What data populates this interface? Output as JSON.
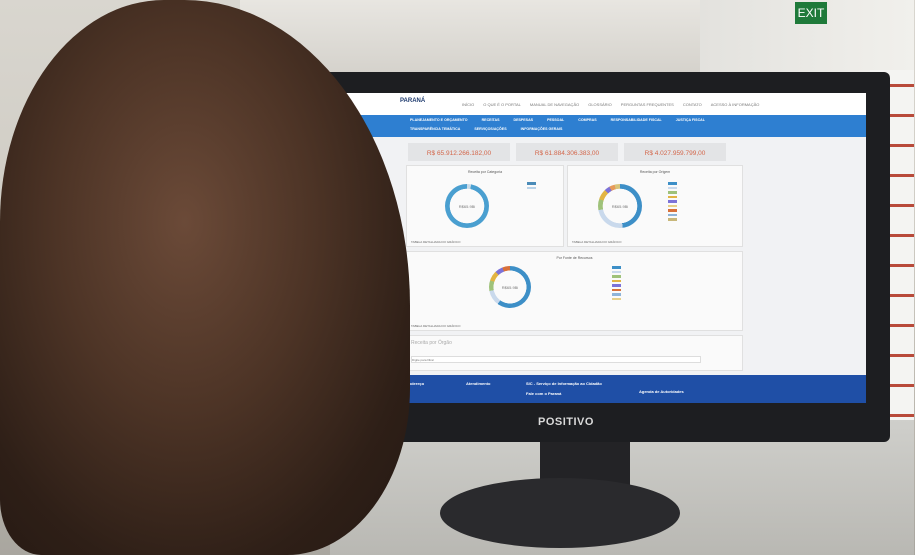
{
  "sign": {
    "exit_label": "EXIT"
  },
  "monitor": {
    "brand": "POSITIVO"
  },
  "site": {
    "logo": "PARANÁ",
    "top_nav": [
      "INÍCIO",
      "O QUE É O PORTAL",
      "MANUAL DE NAVEGAÇÃO",
      "GLOSSÁRIO",
      "PERGUNTAS FREQUENTES",
      "CONTATO",
      "ACESSO À INFORMAÇÃO"
    ],
    "menu_row1": [
      "PLANEJAMENTO E ORÇAMENTO",
      "RECEITAS",
      "DESPESAS",
      "PESSOAL",
      "COMPRAS",
      "RESPONSABILIDADE FISCAL",
      "JUSTIÇA FISCAL"
    ],
    "menu_row2": [
      "TRANSPARÊNCIA TEMÁTICA",
      "SERVIÇOS/AÇÕES",
      "INFORMAÇÕES GERAIS"
    ],
    "kpis": [
      "R$ 65.912.266.182,00",
      "R$ 61.884.306.383,00",
      "R$ 4.027.959.799,00"
    ],
    "charts": [
      {
        "title": "Receita por Categoria",
        "center": "R$65.9Bi",
        "table": "TABELA DETALHADA DO GRÁFICO"
      },
      {
        "title": "Receita por Origem",
        "center": "R$65.9Bi",
        "table": "TABELA DETALHADA DO GRÁFICO"
      },
      {
        "title": "Por Fonte de Recursos",
        "center": "R$65.9Bi",
        "table": "TABELA DETALHADA DO GRÁFICO"
      }
    ],
    "organ": {
      "title": "Receita por Órgão",
      "filter_placeholder": "Digite para filtrar"
    },
    "footer": {
      "address": "Endereço",
      "service": "Atendimento",
      "sic": "SIC - Serviço de Informação ao Cidadão",
      "talk": "Fale com o Paraná",
      "agenda": "Agenda de Autoridades"
    },
    "colors": {
      "menu": "#2e7fd1",
      "footer": "#1f4fa6",
      "kpi_text": "#d3664a",
      "donut": "#4a9fd0"
    }
  }
}
